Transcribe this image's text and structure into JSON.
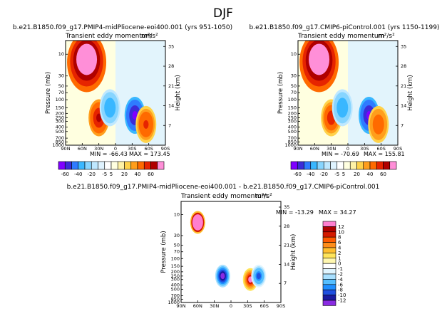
{
  "page": {
    "season": "DJF",
    "sub_title": "b.e21.B1850.f09_g17.PMIP4-midPliocene-eoi400.001 - b.e21.B1850.f09_g17.CMIP6-piControl.001"
  },
  "palettes": {
    "abs": [
      "#7f00ff",
      "#3b2bd8",
      "#2f7bff",
      "#39b7ff",
      "#87d5ff",
      "#bfe8ff",
      "#dff3ff",
      "#ffffff",
      "#ffffe0",
      "#fff2a6",
      "#ffd24a",
      "#ff9e1c",
      "#ff6a00",
      "#e62400",
      "#b00000",
      "#ff8fd8"
    ],
    "diff": [
      "#ff7fd0",
      "#b00000",
      "#d41a00",
      "#ff5a00",
      "#ff8d1a",
      "#ffbe2e",
      "#ffe45a",
      "#fff7b0",
      "#ffffff",
      "#e0f5ff",
      "#a8e0ff",
      "#55bfff",
      "#1f8fff",
      "#1f4fe0",
      "#1a1aa0",
      "#8a2be2"
    ]
  },
  "chart_data": [
    {
      "type": "heatmap",
      "panel": "left",
      "title": "b.e21.B1850.f09_g17.PMIP4-midPliocene-eoi400.001 (yrs 951-1050)",
      "field": "Transient eddy momentum",
      "units": "m²/s²",
      "xlabel": "",
      "ylabel": "Pressure (mb)",
      "ylabel_right": "Height (km)",
      "x_ticks": [
        "90N",
        "60N",
        "30N",
        "0",
        "30S",
        "60S",
        "90S"
      ],
      "y_ticks": [
        "10",
        "30",
        "50",
        "70",
        "100",
        "150",
        "200",
        "250",
        "300",
        "400",
        "500",
        "700",
        "850",
        "1000"
      ],
      "y_ticks_right": [
        "35",
        "28",
        "21",
        "14",
        "7"
      ],
      "stats": {
        "min": "-66.43",
        "max": "173.45"
      },
      "features": [
        {
          "lat": 52,
          "p": 15,
          "value": 173.45
        },
        {
          "lat": 30,
          "p": 250,
          "value": 60
        },
        {
          "lat": 10,
          "p": 150,
          "value": -20
        },
        {
          "lat": -35,
          "p": 220,
          "value": -66.43
        },
        {
          "lat": -55,
          "p": 350,
          "value": 40
        }
      ]
    },
    {
      "type": "heatmap",
      "panel": "right",
      "title": "b.e21.B1850.f09_g17.CMIP6-piControl.001 (yrs 1150-1199)",
      "field": "Transient eddy momentum",
      "units": "m²/s²",
      "xlabel": "",
      "ylabel": "Pressure (mb)",
      "ylabel_right": "Height (km)",
      "x_ticks": [
        "90N",
        "60N",
        "30N",
        "0",
        "30S",
        "60S",
        "90S"
      ],
      "y_ticks": [
        "10",
        "30",
        "50",
        "70",
        "100",
        "150",
        "200",
        "250",
        "300",
        "400",
        "500",
        "700",
        "850",
        "1000"
      ],
      "y_ticks_right": [
        "35",
        "28",
        "21",
        "14",
        "7"
      ],
      "stats": {
        "min": "-70.69",
        "max": "155.81"
      },
      "features": [
        {
          "lat": 52,
          "p": 15,
          "value": 155.81
        },
        {
          "lat": 30,
          "p": 250,
          "value": 55
        },
        {
          "lat": 10,
          "p": 150,
          "value": -20
        },
        {
          "lat": -38,
          "p": 220,
          "value": -70.69
        },
        {
          "lat": -55,
          "p": 350,
          "value": 35
        }
      ]
    },
    {
      "type": "heatmap",
      "panel": "diff",
      "field": "Transient eddy momentum",
      "units": "m²/s²",
      "xlabel": "",
      "ylabel": "Pressure (mb)",
      "ylabel_right": "Height (km)",
      "x_ticks": [
        "90N",
        "60N",
        "30N",
        "0",
        "30S",
        "60S",
        "90S"
      ],
      "y_ticks": [
        "10",
        "30",
        "50",
        "70",
        "100",
        "150",
        "200",
        "250",
        "300",
        "400",
        "500",
        "700",
        "850",
        "1000"
      ],
      "y_ticks_right": [
        "35",
        "28",
        "21",
        "14",
        "7"
      ],
      "stats": {
        "min": "-13.29",
        "max": "34.27"
      },
      "features": [
        {
          "lat": 60,
          "p": 15,
          "value": 34.27
        },
        {
          "lat": 15,
          "p": 250,
          "value": -13.29
        },
        {
          "lat": -35,
          "p": 300,
          "value": 12
        },
        {
          "lat": -50,
          "p": 250,
          "value": -8
        }
      ]
    }
  ],
  "colorbar_abs": {
    "labels": [
      "-60",
      "-40",
      "-20",
      "-5",
      "5",
      "20",
      "40",
      "60"
    ]
  },
  "colorbar_diff": {
    "labels": [
      "12",
      "10",
      "8",
      "6",
      "4",
      "2",
      "1",
      "0",
      "-1",
      "-2",
      "-4",
      "-6",
      "-8",
      "-10",
      "-12"
    ]
  }
}
